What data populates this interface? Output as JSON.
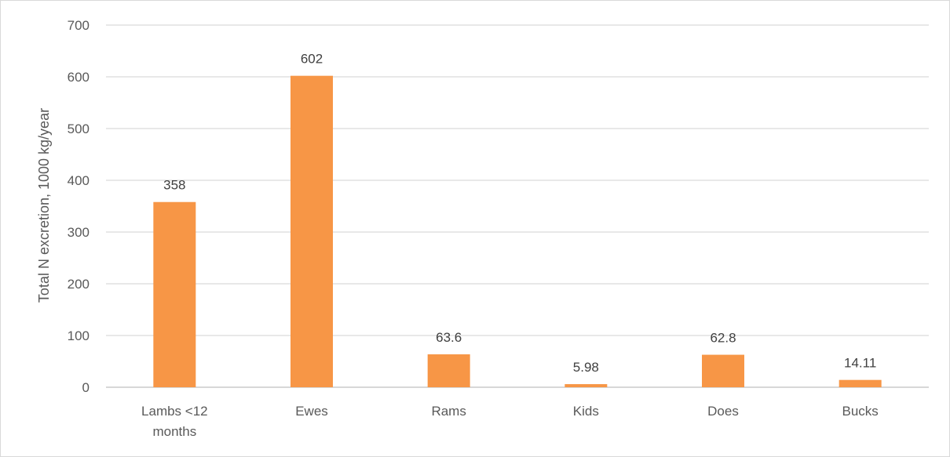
{
  "chart_data": {
    "type": "bar",
    "title": "",
    "xlabel": "",
    "ylabel": "Total N excretion, 1000 kg/year",
    "categories": [
      [
        "Lambs <12",
        "months"
      ],
      [
        "Ewes"
      ],
      [
        "Rams"
      ],
      [
        "Kids"
      ],
      [
        "Does"
      ],
      [
        "Bucks"
      ]
    ],
    "values": [
      358,
      602,
      63.6,
      5.98,
      62.8,
      14.11
    ],
    "data_labels": [
      "358",
      "602",
      "63.6",
      "5.98",
      "62.8",
      "14.11"
    ],
    "ylim": [
      0,
      700
    ],
    "yticks": [
      0,
      100,
      200,
      300,
      400,
      500,
      600,
      700
    ],
    "grid": true,
    "legend": "none",
    "colors": {
      "bar": "#f79646",
      "grid": "#d9d9d9",
      "axis": "#bfbfbf"
    }
  }
}
